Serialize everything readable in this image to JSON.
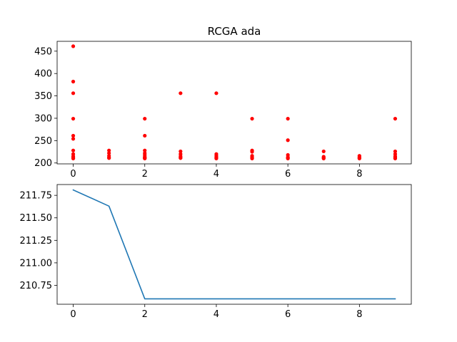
{
  "figure": {
    "background": "#ffffff"
  },
  "chart_data": [
    {
      "type": "scatter",
      "title": "RCGA ada",
      "xlabel": "",
      "ylabel": "",
      "xlim": [
        -0.45,
        9.45
      ],
      "ylim": [
        198,
        472
      ],
      "xticks": [
        0,
        2,
        4,
        6,
        8
      ],
      "yticks": [
        200,
        250,
        300,
        350,
        400,
        450
      ],
      "grid": false,
      "color": "#ff0000",
      "points": [
        {
          "x": 0,
          "y": [
            461,
            382,
            356,
            299,
            261,
            254,
            228,
            220,
            215,
            212,
            211,
            210
          ]
        },
        {
          "x": 1,
          "y": [
            228,
            222,
            216,
            212,
            211
          ]
        },
        {
          "x": 2,
          "y": [
            299,
            261,
            228,
            222,
            218,
            214,
            212,
            211,
            210
          ]
        },
        {
          "x": 3,
          "y": [
            356,
            226,
            220,
            215,
            212,
            211
          ]
        },
        {
          "x": 4,
          "y": [
            356,
            220,
            216,
            213,
            211,
            210
          ]
        },
        {
          "x": 5,
          "y": [
            299,
            228,
            225,
            216,
            213,
            211,
            210
          ]
        },
        {
          "x": 6,
          "y": [
            299,
            251,
            218,
            213,
            211,
            210
          ]
        },
        {
          "x": 7,
          "y": [
            226,
            214,
            212,
            211,
            210
          ]
        },
        {
          "x": 8,
          "y": [
            216,
            213,
            211,
            210
          ]
        },
        {
          "x": 9,
          "y": [
            299,
            226,
            220,
            215,
            212,
            211,
            210
          ]
        }
      ]
    },
    {
      "type": "line",
      "title": "",
      "xlabel": "",
      "ylabel": "",
      "xlim": [
        -0.45,
        9.45
      ],
      "ylim": [
        210.54,
        211.87
      ],
      "xticks": [
        0,
        2,
        4,
        6,
        8
      ],
      "yticks": [
        210.75,
        211.0,
        211.25,
        211.5,
        211.75
      ],
      "ytick_labels": [
        "210.75",
        "211.00",
        "211.25",
        "211.50",
        "211.75"
      ],
      "grid": false,
      "color": "#1f77b4",
      "x": [
        0,
        1,
        2,
        3,
        4,
        5,
        6,
        7,
        8,
        9
      ],
      "y": [
        211.81,
        211.63,
        210.6,
        210.6,
        210.6,
        210.6,
        210.6,
        210.6,
        210.6,
        210.6
      ]
    }
  ]
}
